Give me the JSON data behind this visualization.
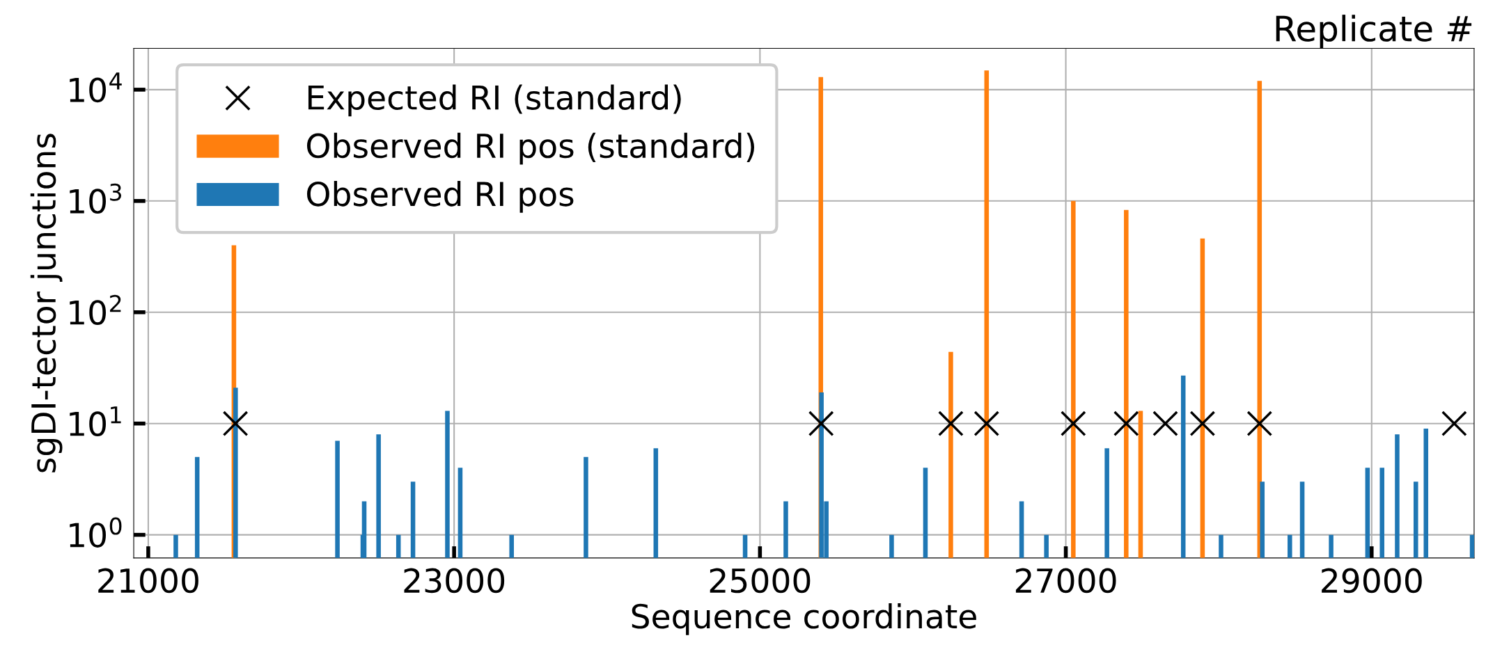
{
  "chart_data": {
    "type": "bar",
    "title": "Replicate #",
    "xlabel": "Sequence coordinate",
    "ylabel": "sgDI-tector junctions",
    "series": [
      {
        "name": "Expected RI (standard)",
        "type": "scatter",
        "color": "#000000",
        "marker": "cross",
        "x": [
          21570,
          25400,
          26248,
          26482,
          27049,
          27395,
          27651,
          27894,
          28267,
          29540
        ],
        "values": [
          10,
          10,
          10,
          10,
          10,
          10,
          10,
          10,
          10,
          10
        ]
      },
      {
        "name": "Observed RI pos (standard)",
        "color": "#ff7f0e",
        "x": [
          21560,
          25398,
          26248,
          26482,
          27049,
          27395,
          27489,
          27894,
          28267
        ],
        "values": [
          400,
          13000,
          44,
          14900,
          1000,
          830,
          13,
          460,
          12000
        ]
      },
      {
        "name": "Observed RI pos",
        "color": "#1f77b4",
        "x": [
          21180,
          21320,
          21571,
          22237,
          22403,
          22412,
          22506,
          22636,
          22731,
          22956,
          23040,
          23376,
          23862,
          24319,
          24903,
          25169,
          25402,
          25434,
          25861,
          26082,
          26711,
          26873,
          27269,
          27768,
          28015,
          28285,
          28465,
          28546,
          28735,
          28973,
          29068,
          29167,
          29289,
          29355,
          29657
        ],
        "values": [
          1,
          5,
          21,
          7,
          1,
          2,
          8,
          1,
          3,
          13,
          4,
          1,
          5,
          6,
          1,
          2,
          19,
          2,
          1,
          4,
          2,
          1,
          6,
          27,
          1,
          3,
          1,
          3,
          1,
          4,
          4,
          8,
          3,
          9,
          1
        ]
      }
    ],
    "xlim": [
      20905,
      29670
    ],
    "xticks": [
      21000,
      23000,
      25000,
      27000,
      29000
    ],
    "log": "y",
    "ylim": [
      0.62,
      23500
    ],
    "yticks": [
      {
        "value": 1,
        "label": "10$^{0}$"
      },
      {
        "value": 10,
        "label": "10$^{1}$"
      },
      {
        "value": 100,
        "label": "10$^{2}$"
      },
      {
        "value": 1000,
        "label": "10$^{3}$"
      },
      {
        "value": 10000,
        "label": "10$^{4}$"
      }
    ],
    "grid": true,
    "legend": "top left"
  }
}
